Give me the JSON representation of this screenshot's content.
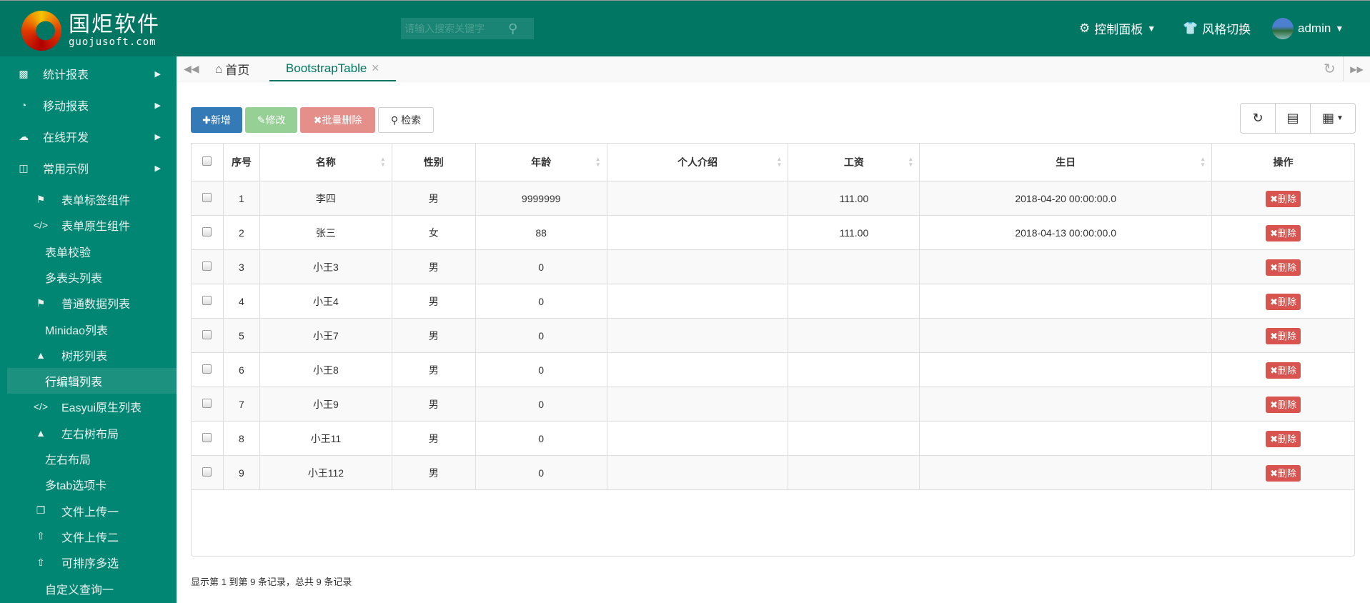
{
  "header": {
    "logo_cn": "国炬软件",
    "logo_en": "guojusoft.com",
    "search_placeholder": "请输入搜索关键字",
    "control_panel": "控制面板",
    "style_switch": "风格切换",
    "user": "admin"
  },
  "sidebar": {
    "items": [
      {
        "label": "统计报表",
        "icon": "bar-chart-icon",
        "level": "top"
      },
      {
        "label": "移动报表",
        "icon": "pie-chart-icon",
        "level": "top"
      },
      {
        "label": "在线开发",
        "icon": "cloud-icon",
        "level": "top"
      },
      {
        "label": "常用示例",
        "icon": "twitch-icon",
        "level": "top"
      },
      {
        "label": "表单标签组件",
        "icon": "tags-icon",
        "level": "sub"
      },
      {
        "label": "表单原生组件",
        "icon": "code-icon",
        "level": "sub"
      },
      {
        "label": "表单校验",
        "level": "plain"
      },
      {
        "label": "多表头列表",
        "level": "plain"
      },
      {
        "label": "普通数据列表",
        "icon": "tags-icon",
        "level": "sub"
      },
      {
        "label": "Minidao列表",
        "level": "plain"
      },
      {
        "label": "树形列表",
        "icon": "tree-icon",
        "level": "sub"
      },
      {
        "label": "行编辑列表",
        "level": "active"
      },
      {
        "label": "Easyui原生列表",
        "icon": "code-icon",
        "level": "sub"
      },
      {
        "label": "左右树布局",
        "icon": "tree-icon",
        "level": "sub"
      },
      {
        "label": "左右布局",
        "level": "plain"
      },
      {
        "label": "多tab选项卡",
        "level": "plain"
      },
      {
        "label": "文件上传一",
        "icon": "copy-icon",
        "level": "sub"
      },
      {
        "label": "文件上传二",
        "icon": "upload-icon",
        "level": "sub"
      },
      {
        "label": "可排序多选",
        "icon": "upload-icon",
        "level": "sub"
      },
      {
        "label": "自定义查询一",
        "level": "plain"
      }
    ]
  },
  "tabs": {
    "home": "首页",
    "active": "BootstrapTable"
  },
  "toolbar": {
    "add": "新增",
    "edit": "修改",
    "batch_delete": "批量删除",
    "search": "检索"
  },
  "table": {
    "columns": [
      "序号",
      "名称",
      "性别",
      "年龄",
      "个人介绍",
      "工资",
      "生日",
      "操作"
    ],
    "rows": [
      [
        "1",
        "李四",
        "男",
        "9999999",
        "",
        "111.00",
        "2018-04-20 00:00:00.0"
      ],
      [
        "2",
        "张三",
        "女",
        "88",
        "",
        "111.00",
        "2018-04-13 00:00:00.0"
      ],
      [
        "3",
        "小王3",
        "男",
        "0",
        "",
        "",
        ""
      ],
      [
        "4",
        "小王4",
        "男",
        "0",
        "",
        "",
        ""
      ],
      [
        "5",
        "小王7",
        "男",
        "0",
        "",
        "",
        ""
      ],
      [
        "6",
        "小王8",
        "男",
        "0",
        "",
        "",
        ""
      ],
      [
        "7",
        "小王9",
        "男",
        "0",
        "",
        "",
        ""
      ],
      [
        "8",
        "小王11",
        "男",
        "0",
        "",
        "",
        ""
      ],
      [
        "9",
        "小王112",
        "男",
        "0",
        "",
        "",
        ""
      ]
    ],
    "delete_label": "删除"
  },
  "footer": {
    "summary": "显示第 1 到第 9 条记录，总共 9 条记录"
  },
  "colors": {
    "header": "#007663",
    "sidebar": "#018673",
    "primary": "#337ab7",
    "success": "#96d094",
    "danger": "#d9534f"
  }
}
